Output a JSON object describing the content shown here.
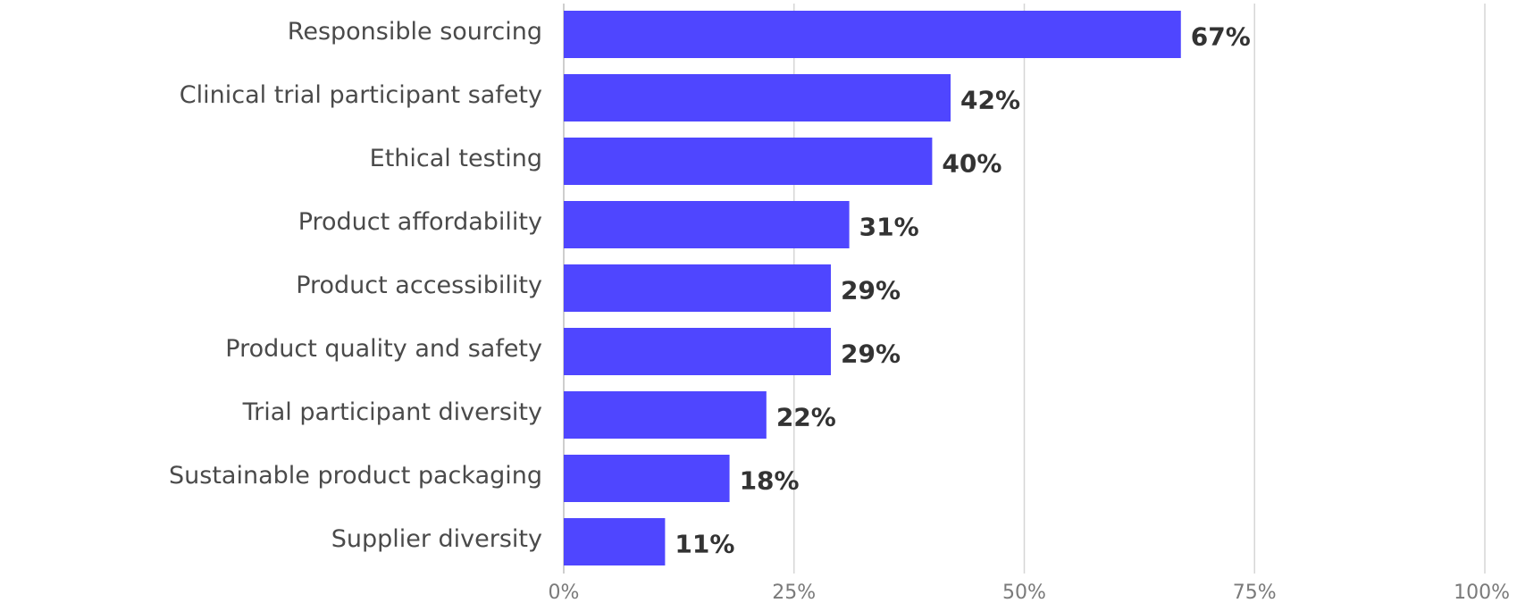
{
  "chart_data": {
    "type": "bar",
    "orientation": "horizontal",
    "categories": [
      "Responsible sourcing",
      "Clinical trial participant safety",
      "Ethical testing",
      "Product affordability",
      "Product accessibility",
      "Product quality and safety",
      "Trial participant diversity",
      "Sustainable product packaging",
      "Supplier diversity"
    ],
    "values": [
      67,
      42,
      40,
      31,
      29,
      29,
      22,
      18,
      11
    ],
    "value_labels": [
      "67%",
      "42%",
      "40%",
      "31%",
      "29%",
      "29%",
      "22%",
      "18%",
      "11%"
    ],
    "xlim": [
      0,
      100
    ],
    "x_ticks": [
      0,
      25,
      50,
      75,
      100
    ],
    "x_tick_labels": [
      "0%",
      "25%",
      "50%",
      "75%",
      "100%"
    ],
    "bar_color": "#4f46ff",
    "grid": true,
    "legend": false
  }
}
